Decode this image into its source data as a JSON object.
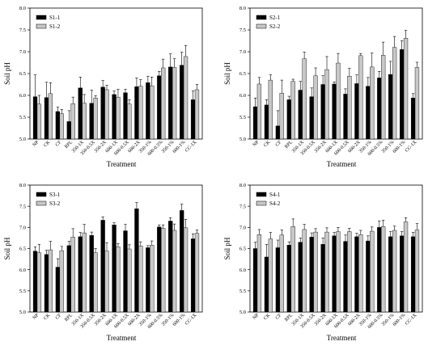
{
  "chart_data": [
    {
      "type": "bar",
      "xlabel": "Treatment",
      "ylabel": "Soil pH",
      "ylim": [
        5.0,
        8.0
      ],
      "yticks": [
        "5.0",
        "5.5",
        "6.0",
        "6.5",
        "7.0",
        "7.5",
        "8.0"
      ],
      "legend_position": "top-left",
      "categories": [
        "NP",
        "CK",
        "CF",
        "RPL",
        "350-1X",
        "350-0.5X",
        "350-2X",
        "600-1X",
        "600-0.5X",
        "600-2X",
        "350-1%",
        "600-0.5%",
        "350-1%",
        "600-1%",
        "CC-1X"
      ],
      "series": [
        {
          "name": "S1-1",
          "color": "#000000",
          "values": [
            5.97,
            5.95,
            5.63,
            5.4,
            6.17,
            5.82,
            6.19,
            6.02,
            6.06,
            6.2,
            6.29,
            6.45,
            6.65,
            6.69,
            5.9
          ],
          "errors": [
            0.5,
            0.35,
            0.1,
            0.25,
            0.25,
            0.3,
            0.15,
            0.08,
            0.08,
            0.2,
            0.15,
            0.1,
            0.3,
            0.3,
            0.2
          ]
        },
        {
          "name": "S1-2",
          "color": "#c8c8c8",
          "values": [
            5.8,
            6.04,
            5.58,
            5.81,
            5.82,
            5.94,
            6.13,
            5.96,
            5.8,
            6.21,
            6.22,
            6.63,
            6.64,
            6.89,
            6.13
          ],
          "errors": [
            0.2,
            0.25,
            0.1,
            0.15,
            0.2,
            0.05,
            0.1,
            0.18,
            0.1,
            0.15,
            0.2,
            0.2,
            0.2,
            0.25,
            0.12
          ]
        }
      ]
    },
    {
      "type": "bar",
      "xlabel": "Treatment",
      "ylabel": "Soil pH",
      "ylim": [
        5.0,
        8.0
      ],
      "yticks": [
        "5.0",
        "5.5",
        "6.0",
        "6.5",
        "7.0",
        "7.5",
        "8.0"
      ],
      "legend_position": "top-left",
      "categories": [
        "NP",
        "CK",
        "CF",
        "RPL",
        "350-1X",
        "350-0.5X",
        "350-2X",
        "600-1X",
        "600-0.5X",
        "600-2X",
        "350-1%",
        "600-0.5%",
        "350-1%",
        "600-1%",
        "CC-1X"
      ],
      "series": [
        {
          "name": "S2-1",
          "color": "#000000",
          "values": [
            5.74,
            5.78,
            5.3,
            5.9,
            6.12,
            5.97,
            6.25,
            6.26,
            6.03,
            6.27,
            6.21,
            6.4,
            6.48,
            7.05,
            5.94
          ],
          "errors": [
            0.2,
            0.12,
            0.35,
            0.08,
            0.2,
            0.2,
            0.2,
            0.05,
            0.12,
            0.2,
            0.2,
            0.15,
            0.3,
            0.2,
            0.1
          ]
        },
        {
          "name": "S2-2",
          "color": "#c8c8c8",
          "values": [
            6.26,
            6.35,
            6.05,
            6.32,
            6.84,
            6.45,
            6.59,
            6.74,
            6.44,
            6.91,
            6.65,
            6.92,
            7.1,
            7.31,
            6.64
          ],
          "errors": [
            0.15,
            0.12,
            0.3,
            0.05,
            0.15,
            0.18,
            0.3,
            0.22,
            0.18,
            0.05,
            0.32,
            0.3,
            0.25,
            0.18,
            0.12
          ]
        }
      ]
    },
    {
      "type": "bar",
      "xlabel": "Treatment",
      "ylabel": "Soil pH",
      "ylim": [
        5.0,
        8.0
      ],
      "yticks": [
        "5.0",
        "5.5",
        "6.0",
        "6.5",
        "7.0",
        "7.5",
        "8.0"
      ],
      "legend_position": "top-left",
      "categories": [
        "NP",
        "CK",
        "CF",
        "RPL",
        "350-1X",
        "350-0.5X",
        "350-2X",
        "600-1X",
        "600-0.5X",
        "600-2X",
        "350-1%",
        "600-0.5%",
        "350-1%",
        "600-1%",
        "CC-1X"
      ],
      "series": [
        {
          "name": "S3-1",
          "color": "#000000",
          "values": [
            6.44,
            6.36,
            6.06,
            6.57,
            6.78,
            6.81,
            7.17,
            7.06,
            6.92,
            7.44,
            6.52,
            7.01,
            7.15,
            7.4,
            6.73
          ],
          "errors": [
            0.1,
            0.1,
            0.2,
            0.1,
            0.1,
            0.08,
            0.08,
            0.05,
            0.15,
            0.15,
            0.05,
            0.05,
            0.08,
            0.15,
            0.12
          ]
        },
        {
          "name": "S3-2",
          "color": "#c8c8c8",
          "values": [
            6.4,
            6.47,
            6.45,
            6.77,
            6.87,
            6.4,
            6.44,
            6.54,
            6.49,
            6.56,
            6.58,
            6.98,
            6.93,
            6.99,
            6.86
          ],
          "errors": [
            0.2,
            0.2,
            0.1,
            0.2,
            0.2,
            0.1,
            0.2,
            0.08,
            0.1,
            0.1,
            0.1,
            0.08,
            0.15,
            0.2,
            0.08
          ]
        }
      ]
    },
    {
      "type": "bar",
      "xlabel": "Treatment",
      "ylabel": "Soil pH",
      "ylim": [
        5.0,
        8.0
      ],
      "yticks": [
        "5.0",
        "5.5",
        "6.0",
        "6.5",
        "7.0",
        "7.5",
        "8.0"
      ],
      "legend_position": "top-left",
      "categories": [
        "NP",
        "CK",
        "CF",
        "RPL",
        "350-1X",
        "350-0.5X",
        "350-2X",
        "600-1X",
        "600-0.5X",
        "600-2X",
        "350-1%",
        "600-0.5%",
        "350-1%",
        "600-1%",
        "CC-1X"
      ],
      "series": [
        {
          "name": "S4-1",
          "color": "#000000",
          "values": [
            6.5,
            6.3,
            6.52,
            6.58,
            6.65,
            6.77,
            6.6,
            6.8,
            6.67,
            6.78,
            6.68,
            7.0,
            6.78,
            6.8,
            6.78
          ],
          "errors": [
            0.15,
            0.3,
            0.18,
            0.08,
            0.1,
            0.1,
            0.15,
            0.08,
            0.15,
            0.08,
            0.12,
            0.15,
            0.12,
            0.1,
            0.1
          ]
        },
        {
          "name": "S4-2",
          "color": "#c8c8c8",
          "values": [
            6.83,
            6.73,
            6.82,
            7.02,
            6.95,
            6.89,
            6.89,
            6.9,
            6.9,
            6.83,
            6.91,
            7.02,
            6.93,
            7.13,
            6.94
          ],
          "errors": [
            0.12,
            0.15,
            0.12,
            0.18,
            0.12,
            0.08,
            0.1,
            0.1,
            0.08,
            0.1,
            0.1,
            0.15,
            0.1,
            0.1,
            0.15
          ]
        }
      ]
    }
  ]
}
